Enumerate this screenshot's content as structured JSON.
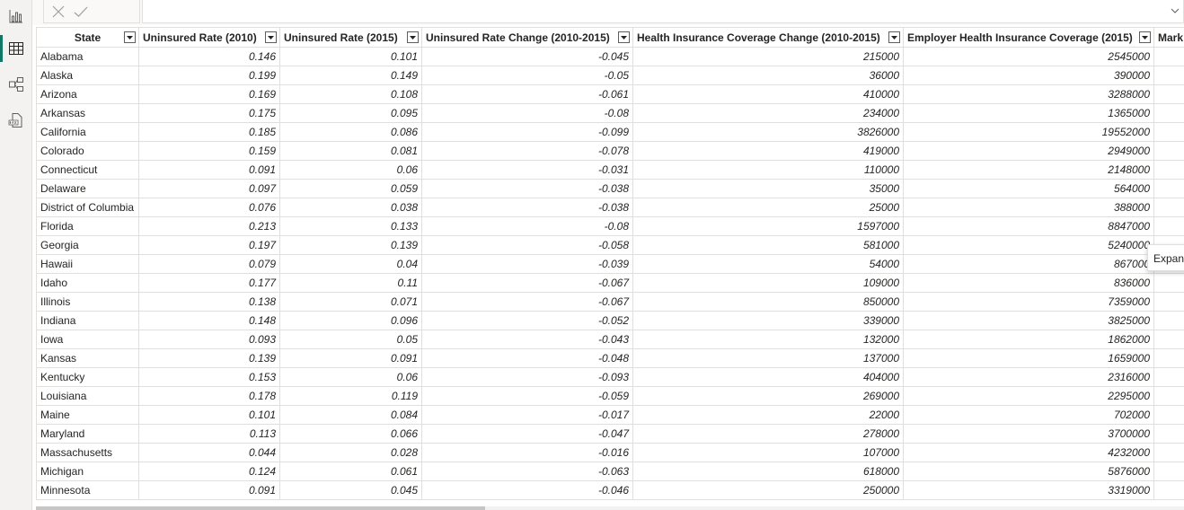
{
  "toolbar": {
    "cancel_label": "×",
    "commit_label": "✓"
  },
  "tooltip": {
    "text": "Expand"
  },
  "table": {
    "columns": [
      "State",
      "Uninsured Rate (2010)",
      "Uninsured Rate (2015)",
      "Uninsured Rate Change (2010-2015)",
      "Health Insurance Coverage Change (2010-2015)",
      "Employer Health Insurance Coverage (2015)",
      "Mark"
    ],
    "rows": [
      [
        "Alabama",
        "0.146",
        "0.101",
        "-0.045",
        "215000",
        "2545000"
      ],
      [
        "Alaska",
        "0.199",
        "0.149",
        "-0.05",
        "36000",
        "390000"
      ],
      [
        "Arizona",
        "0.169",
        "0.108",
        "-0.061",
        "410000",
        "3288000"
      ],
      [
        "Arkansas",
        "0.175",
        "0.095",
        "-0.08",
        "234000",
        "1365000"
      ],
      [
        "California",
        "0.185",
        "0.086",
        "-0.099",
        "3826000",
        "19552000"
      ],
      [
        "Colorado",
        "0.159",
        "0.081",
        "-0.078",
        "419000",
        "2949000"
      ],
      [
        "Connecticut",
        "0.091",
        "0.06",
        "-0.031",
        "110000",
        "2148000"
      ],
      [
        "Delaware",
        "0.097",
        "0.059",
        "-0.038",
        "35000",
        "564000"
      ],
      [
        "District of Columbia",
        "0.076",
        "0.038",
        "-0.038",
        "25000",
        "388000"
      ],
      [
        "Florida",
        "0.213",
        "0.133",
        "-0.08",
        "1597000",
        "8847000"
      ],
      [
        "Georgia",
        "0.197",
        "0.139",
        "-0.058",
        "581000",
        "5240000"
      ],
      [
        "Hawaii",
        "0.079",
        "0.04",
        "-0.039",
        "54000",
        "867000"
      ],
      [
        "Idaho",
        "0.177",
        "0.11",
        "-0.067",
        "109000",
        "836000"
      ],
      [
        "Illinois",
        "0.138",
        "0.071",
        "-0.067",
        "850000",
        "7359000"
      ],
      [
        "Indiana",
        "0.148",
        "0.096",
        "-0.052",
        "339000",
        "3825000"
      ],
      [
        "Iowa",
        "0.093",
        "0.05",
        "-0.043",
        "132000",
        "1862000"
      ],
      [
        "Kansas",
        "0.139",
        "0.091",
        "-0.048",
        "137000",
        "1659000"
      ],
      [
        "Kentucky",
        "0.153",
        "0.06",
        "-0.093",
        "404000",
        "2316000"
      ],
      [
        "Louisiana",
        "0.178",
        "0.119",
        "-0.059",
        "269000",
        "2295000"
      ],
      [
        "Maine",
        "0.101",
        "0.084",
        "-0.017",
        "22000",
        "702000"
      ],
      [
        "Maryland",
        "0.113",
        "0.066",
        "-0.047",
        "278000",
        "3700000"
      ],
      [
        "Massachusetts",
        "0.044",
        "0.028",
        "-0.016",
        "107000",
        "4232000"
      ],
      [
        "Michigan",
        "0.124",
        "0.061",
        "-0.063",
        "618000",
        "5876000"
      ],
      [
        "Minnesota",
        "0.091",
        "0.045",
        "-0.046",
        "250000",
        "3319000"
      ]
    ]
  }
}
